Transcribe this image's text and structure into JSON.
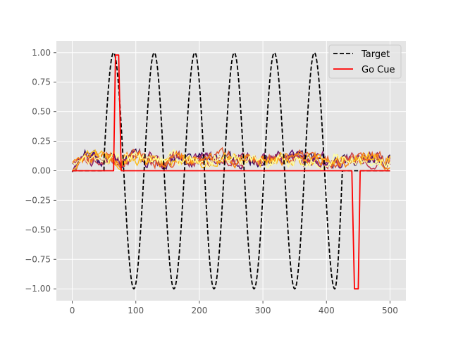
{
  "chart_data": {
    "type": "line",
    "style": "ggplot",
    "grid": true,
    "legend_position": "top-right",
    "title": "",
    "xlabel": "",
    "ylabel": "",
    "xlim": [
      -25,
      525
    ],
    "ylim": [
      -1.1,
      1.1
    ],
    "x_ticks": [
      0,
      100,
      200,
      300,
      400,
      500
    ],
    "x_tick_labels": [
      "0",
      "100",
      "200",
      "300",
      "400",
      "500"
    ],
    "y_ticks": [
      1.0,
      0.75,
      0.5,
      0.25,
      0.0,
      -0.25,
      -0.5,
      -0.75,
      -1.0
    ],
    "y_tick_labels": [
      "1.00",
      "0.75",
      "0.50",
      "0.25",
      "0.00",
      "−0.25",
      "−0.50",
      "−0.75",
      "−1.00"
    ],
    "legend": [
      {
        "label": "Target",
        "color": "#000000",
        "dash": true
      },
      {
        "label": "Go Cue",
        "color": "#ff0000",
        "dash": false
      }
    ],
    "target": {
      "color": "#000000",
      "dashed": true,
      "x_start": 0,
      "x_end": 500,
      "zero_until": 50,
      "peak_x": [
        65,
        129,
        193,
        255,
        318,
        381
      ],
      "trough_x": [
        97,
        160,
        223,
        286,
        350,
        413
      ],
      "peak_y": 1.0,
      "trough_y": -1.0,
      "zero_after": 413
    },
    "go_cue": {
      "color": "#ff0000",
      "points": [
        [
          0,
          0
        ],
        [
          65,
          0
        ],
        [
          68,
          0.98
        ],
        [
          73,
          0.98
        ],
        [
          77,
          0
        ],
        [
          440,
          0
        ],
        [
          444,
          -1.0
        ],
        [
          450,
          -1.0
        ],
        [
          453,
          0
        ],
        [
          500,
          0
        ]
      ]
    },
    "output_traces": {
      "count": 8,
      "x_start": 0,
      "x_end": 500,
      "baseline": 0.1,
      "noise_amplitude": 0.05,
      "colors": [
        "#2d0b59",
        "#5c126e",
        "#8d2369",
        "#c03a51",
        "#e45a31",
        "#f8850f",
        "#fbbe23",
        "#fcffa4"
      ]
    }
  }
}
